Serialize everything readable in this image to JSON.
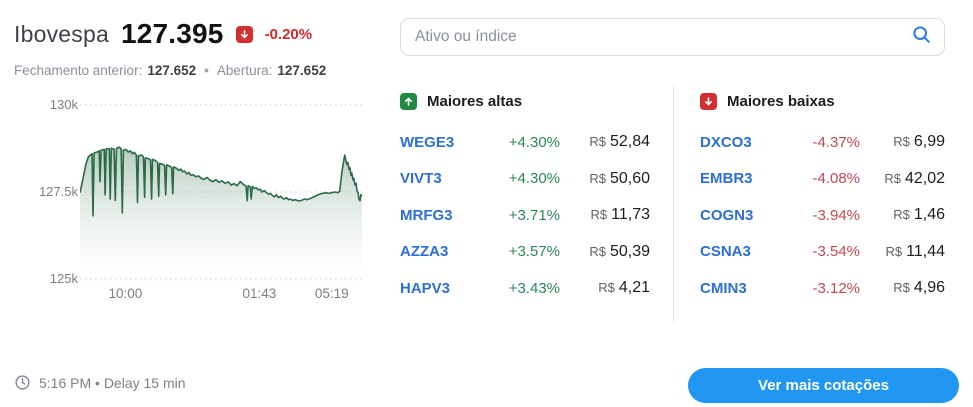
{
  "header": {
    "index_name": "Ibovespa",
    "index_value": "127.395",
    "change_percent": "-0.20%",
    "change_direction": "down",
    "prev_close_label": "Fechamento anterior:",
    "prev_close_value": "127.652",
    "separator": "•",
    "open_label": "Abertura:",
    "open_value": "127.652"
  },
  "search": {
    "placeholder": "Ativo ou índice",
    "icon": "search-icon",
    "icon_color": "#2479e8"
  },
  "chart_data": {
    "type": "area",
    "title": "Ibovespa intraday",
    "xlabel": "",
    "ylabel": "",
    "grid": "dotted-horizontal",
    "legend": "none",
    "ylim": [
      125000,
      130000
    ],
    "y_ticks": [
      {
        "label": "130k",
        "value": 130000
      },
      {
        "label": "127.5k",
        "value": 127500
      },
      {
        "label": "125k",
        "value": 125000
      }
    ],
    "x_ticks": [
      {
        "label": "10:00",
        "position": 0.161
      },
      {
        "label": "01:43",
        "position": 0.636
      },
      {
        "label": "05:19",
        "position": 0.893
      }
    ],
    "x_unit": "fraction_of_plot_width",
    "line_color": "#2b6a47",
    "fill_top_color": "rgba(76,129,98,0.42)",
    "fill_bottom_color": "rgba(255,255,255,0.04)",
    "points": [
      [
        0.0,
        127480
      ],
      [
        0.011,
        127900
      ],
      [
        0.021,
        128300
      ],
      [
        0.029,
        128500
      ],
      [
        0.036,
        128560
      ],
      [
        0.043,
        128600
      ],
      [
        0.046,
        126820
      ],
      [
        0.05,
        128620
      ],
      [
        0.061,
        128650
      ],
      [
        0.068,
        128680
      ],
      [
        0.071,
        127800
      ],
      [
        0.075,
        128700
      ],
      [
        0.086,
        128720
      ],
      [
        0.089,
        127420
      ],
      [
        0.093,
        128740
      ],
      [
        0.104,
        128740
      ],
      [
        0.107,
        127300
      ],
      [
        0.111,
        128760
      ],
      [
        0.121,
        128730
      ],
      [
        0.125,
        127260
      ],
      [
        0.129,
        128750
      ],
      [
        0.139,
        128790
      ],
      [
        0.146,
        128740
      ],
      [
        0.15,
        126900
      ],
      [
        0.154,
        128700
      ],
      [
        0.164,
        128720
      ],
      [
        0.171,
        128650
      ],
      [
        0.179,
        128680
      ],
      [
        0.186,
        128600
      ],
      [
        0.193,
        128640
      ],
      [
        0.2,
        128560
      ],
      [
        0.204,
        127200
      ],
      [
        0.207,
        128540
      ],
      [
        0.218,
        128560
      ],
      [
        0.225,
        128500
      ],
      [
        0.229,
        127350
      ],
      [
        0.232,
        128480
      ],
      [
        0.243,
        128460
      ],
      [
        0.25,
        128420
      ],
      [
        0.254,
        127300
      ],
      [
        0.257,
        128440
      ],
      [
        0.268,
        128400
      ],
      [
        0.275,
        128340
      ],
      [
        0.279,
        127380
      ],
      [
        0.282,
        128320
      ],
      [
        0.293,
        128300
      ],
      [
        0.3,
        128260
      ],
      [
        0.304,
        127420
      ],
      [
        0.307,
        128280
      ],
      [
        0.318,
        128240
      ],
      [
        0.325,
        128200
      ],
      [
        0.329,
        127450
      ],
      [
        0.332,
        128220
      ],
      [
        0.343,
        128180
      ],
      [
        0.35,
        128120
      ],
      [
        0.357,
        128160
      ],
      [
        0.364,
        128080
      ],
      [
        0.371,
        128100
      ],
      [
        0.379,
        128020
      ],
      [
        0.386,
        128060
      ],
      [
        0.393,
        127980
      ],
      [
        0.4,
        128000
      ],
      [
        0.411,
        127940
      ],
      [
        0.421,
        127960
      ],
      [
        0.429,
        127900
      ],
      [
        0.439,
        127860
      ],
      [
        0.45,
        127920
      ],
      [
        0.461,
        127840
      ],
      [
        0.471,
        127800
      ],
      [
        0.482,
        127850
      ],
      [
        0.493,
        127780
      ],
      [
        0.504,
        127820
      ],
      [
        0.514,
        127750
      ],
      [
        0.525,
        127790
      ],
      [
        0.536,
        127700
      ],
      [
        0.546,
        127740
      ],
      [
        0.557,
        127680
      ],
      [
        0.568,
        127800
      ],
      [
        0.579,
        127720
      ],
      [
        0.589,
        127660
      ],
      [
        0.593,
        127250
      ],
      [
        0.596,
        127680
      ],
      [
        0.604,
        127640
      ],
      [
        0.607,
        127300
      ],
      [
        0.611,
        127660
      ],
      [
        0.618,
        127600
      ],
      [
        0.625,
        127620
      ],
      [
        0.632,
        127560
      ],
      [
        0.639,
        127580
      ],
      [
        0.646,
        127500
      ],
      [
        0.654,
        127540
      ],
      [
        0.661,
        127480
      ],
      [
        0.668,
        127440
      ],
      [
        0.675,
        127460
      ],
      [
        0.682,
        127400
      ],
      [
        0.689,
        127360
      ],
      [
        0.696,
        127420
      ],
      [
        0.704,
        127340
      ],
      [
        0.711,
        127380
      ],
      [
        0.718,
        127320
      ],
      [
        0.725,
        127300
      ],
      [
        0.732,
        127340
      ],
      [
        0.739,
        127280
      ],
      [
        0.746,
        127300
      ],
      [
        0.754,
        127260
      ],
      [
        0.764,
        127280
      ],
      [
        0.775,
        127240
      ],
      [
        0.786,
        127260
      ],
      [
        0.796,
        127300
      ],
      [
        0.807,
        127280
      ],
      [
        0.818,
        127320
      ],
      [
        0.829,
        127360
      ],
      [
        0.839,
        127400
      ],
      [
        0.85,
        127440
      ],
      [
        0.861,
        127460
      ],
      [
        0.871,
        127480
      ],
      [
        0.882,
        127460
      ],
      [
        0.893,
        127480
      ],
      [
        0.904,
        127500
      ],
      [
        0.914,
        127480
      ],
      [
        0.921,
        127520
      ],
      [
        0.929,
        128100
      ],
      [
        0.936,
        128450
      ],
      [
        0.939,
        128560
      ],
      [
        0.943,
        128400
      ],
      [
        0.946,
        128300
      ],
      [
        0.95,
        128350
      ],
      [
        0.954,
        128150
      ],
      [
        0.957,
        128200
      ],
      [
        0.961,
        127980
      ],
      [
        0.964,
        128050
      ],
      [
        0.968,
        127850
      ],
      [
        0.971,
        127900
      ],
      [
        0.975,
        127700
      ],
      [
        0.979,
        127750
      ],
      [
        0.982,
        127550
      ],
      [
        0.986,
        127480
      ],
      [
        0.989,
        127300
      ],
      [
        0.993,
        127250
      ],
      [
        0.996,
        127420
      ],
      [
        1.0,
        127395
      ]
    ]
  },
  "gainers": {
    "title": "Maiores altas",
    "icon": "up-arrow-badge",
    "accent": "#1e8a44",
    "rows": [
      {
        "ticker": "WEGE3",
        "change": "+4.30%",
        "currency": "R$",
        "price": "52,84"
      },
      {
        "ticker": "VIVT3",
        "change": "+4.30%",
        "currency": "R$",
        "price": "50,60"
      },
      {
        "ticker": "MRFG3",
        "change": "+3.71%",
        "currency": "R$",
        "price": "11,73"
      },
      {
        "ticker": "AZZA3",
        "change": "+3.57%",
        "currency": "R$",
        "price": "50,39"
      },
      {
        "ticker": "HAPV3",
        "change": "+3.43%",
        "currency": "R$",
        "price": "4,21"
      }
    ]
  },
  "losers": {
    "title": "Maiores baixas",
    "icon": "down-arrow-badge",
    "accent": "#d32f2f",
    "rows": [
      {
        "ticker": "DXCO3",
        "change": "-4.37%",
        "currency": "R$",
        "price": "6,99"
      },
      {
        "ticker": "EMBR3",
        "change": "-4.08%",
        "currency": "R$",
        "price": "42,02"
      },
      {
        "ticker": "COGN3",
        "change": "-3.94%",
        "currency": "R$",
        "price": "1,46"
      },
      {
        "ticker": "CSNA3",
        "change": "-3.54%",
        "currency": "R$",
        "price": "11,44"
      },
      {
        "ticker": "CMIN3",
        "change": "-3.12%",
        "currency": "R$",
        "price": "4,96"
      }
    ]
  },
  "footer": {
    "timestamp": "5:16 PM • Delay 15 min",
    "button_label": "Ver mais cotações"
  },
  "colors": {
    "positive": "#2f855a",
    "negative": "#c04a52",
    "ticker_link": "#2c6fd6",
    "button": "#2196f3",
    "badge_up": "#1e8a44",
    "badge_down": "#d32f2f"
  }
}
